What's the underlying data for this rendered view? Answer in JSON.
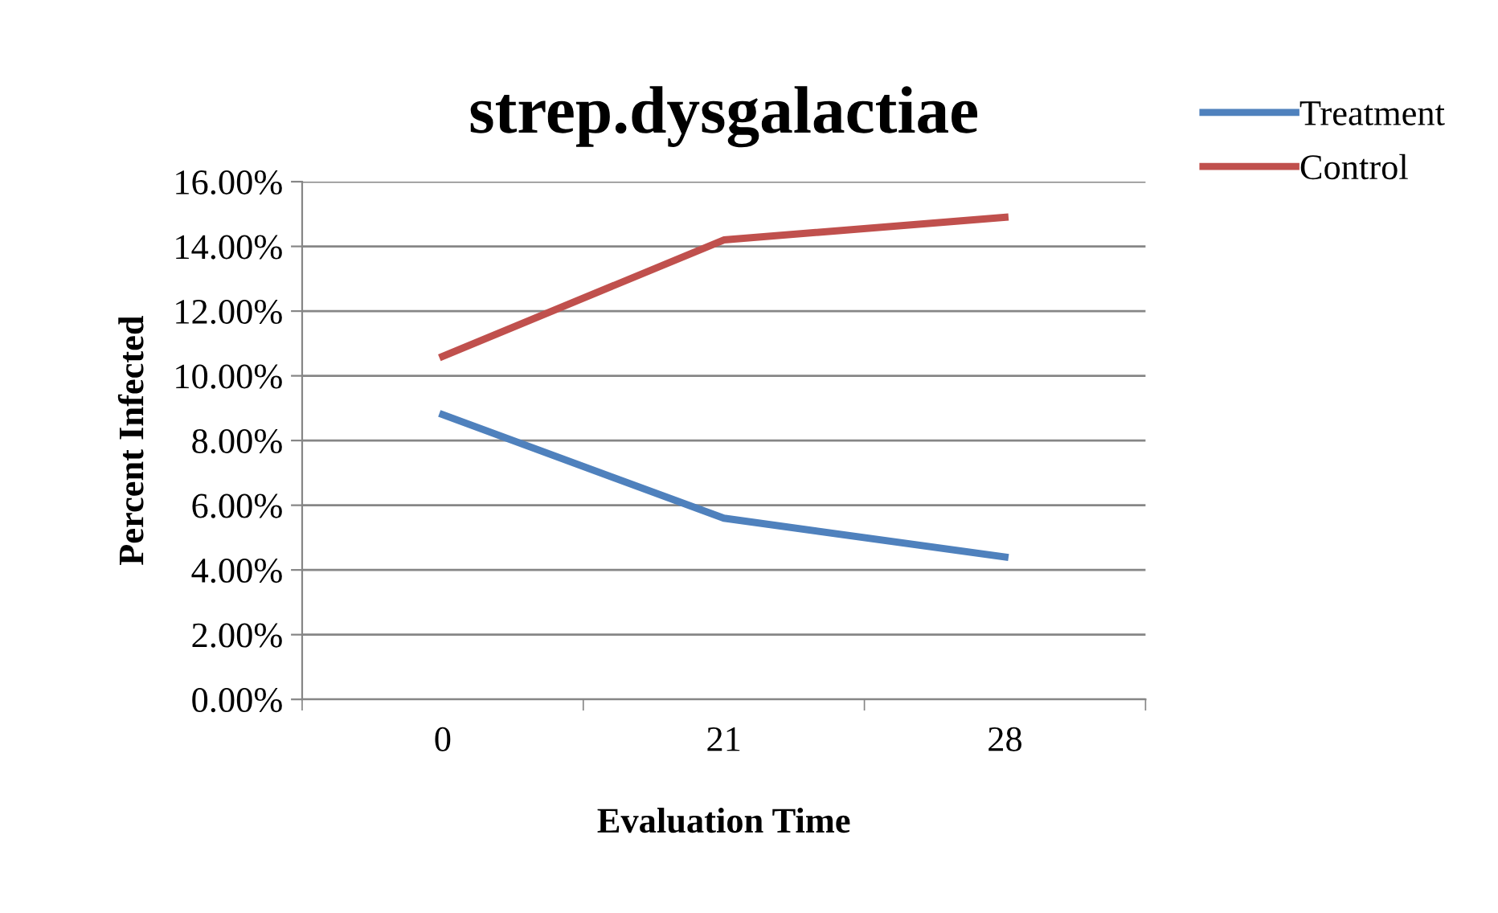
{
  "chart_data": {
    "type": "line",
    "title": "strep.dysgalactiae",
    "xlabel": "Evaluation Time",
    "ylabel": "Percent Infected",
    "categories": [
      "0",
      "21",
      "28"
    ],
    "series": [
      {
        "name": "Treatment",
        "color": "#4f81bd",
        "values": [
          8.8,
          5.6,
          4.4
        ]
      },
      {
        "name": "Control",
        "color": "#c0504d",
        "values": [
          10.6,
          14.2,
          14.9
        ]
      }
    ],
    "ylim": [
      0,
      16
    ],
    "yticks": [
      {
        "value": 0,
        "label": "0.00%"
      },
      {
        "value": 2,
        "label": "2.00%"
      },
      {
        "value": 4,
        "label": "4.00%"
      },
      {
        "value": 6,
        "label": "6.00%"
      },
      {
        "value": 8,
        "label": "8.00%"
      },
      {
        "value": 10,
        "label": "10.00%"
      },
      {
        "value": 12,
        "label": "12.00%"
      },
      {
        "value": 14,
        "label": "14.00%"
      },
      {
        "value": 16,
        "label": "16.00%"
      }
    ],
    "grid": "y",
    "legend": "top right",
    "marker": "none",
    "line_style": "solid"
  }
}
